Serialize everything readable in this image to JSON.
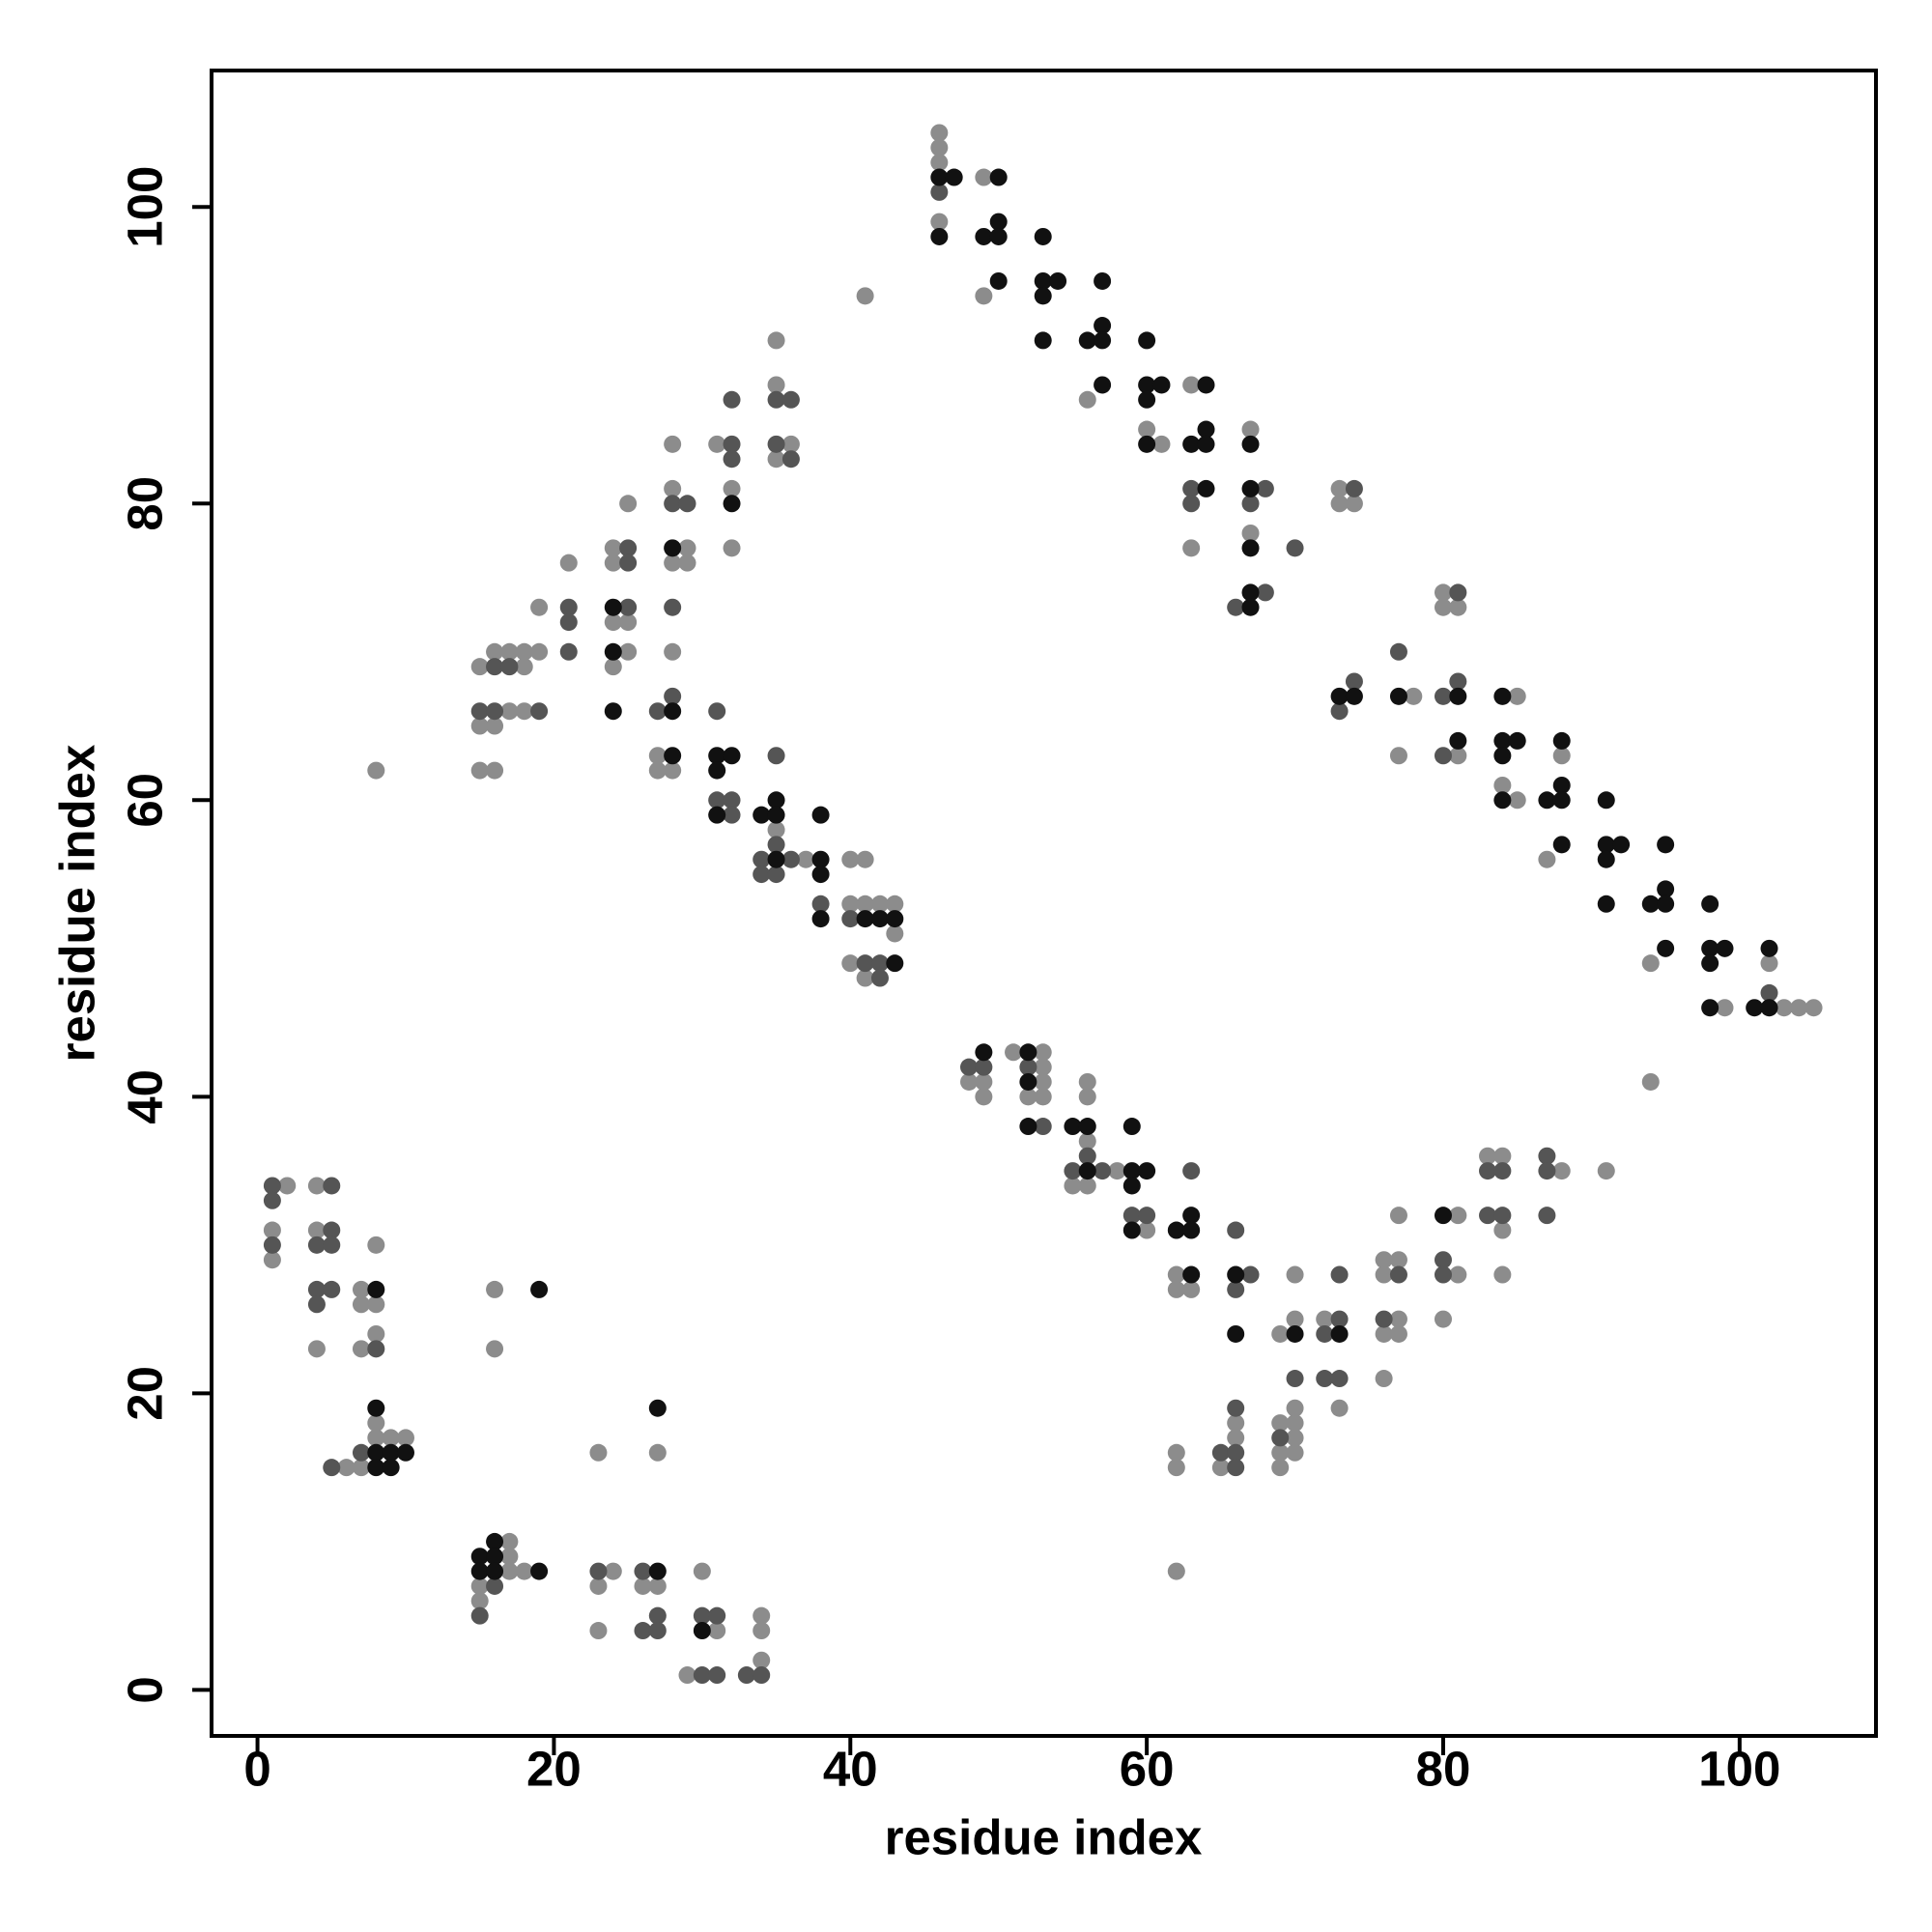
{
  "chart_data": {
    "type": "scatter",
    "x_label": "residue index",
    "y_label": "residue index",
    "xlim": [
      -3.1,
      109.2
    ],
    "ylim": [
      -3.1,
      109.2
    ],
    "xticks": [
      0,
      20,
      40,
      60,
      80,
      100
    ],
    "yticks": [
      0,
      20,
      40,
      60,
      80,
      100
    ],
    "grid": false,
    "series": [
      {
        "color": "#8c8c8c",
        "x": [
          1,
          1,
          2,
          4,
          4,
          4,
          6,
          7,
          7,
          7,
          7,
          8,
          8,
          8,
          8,
          8,
          9,
          10,
          8,
          16,
          16,
          15,
          15,
          17,
          17,
          17,
          18,
          23,
          23,
          23,
          24,
          26,
          27,
          27,
          29,
          30,
          31,
          34,
          34,
          34,
          15,
          15,
          15,
          16,
          16,
          16,
          17,
          17,
          18,
          18,
          18,
          19,
          19,
          21,
          24,
          24,
          24,
          24,
          25,
          25,
          25,
          27,
          27,
          28,
          28,
          28,
          28,
          28,
          29,
          29,
          31,
          32,
          32,
          35,
          35,
          35,
          35,
          36,
          37,
          40,
          40,
          40,
          41,
          41,
          41,
          41,
          42,
          43,
          43,
          46,
          46,
          46,
          46,
          49,
          49,
          56,
          60,
          61,
          63,
          63,
          67,
          67,
          73,
          73,
          74,
          77,
          78,
          80,
          80,
          81,
          81,
          84,
          85,
          85,
          87,
          88,
          94,
          94,
          99,
          102,
          103,
          104,
          105,
          48,
          49,
          49,
          51,
          53,
          53,
          53,
          53,
          52,
          55,
          56,
          56,
          56,
          56,
          58,
          60,
          62,
          62,
          62,
          62,
          62,
          63,
          65,
          66,
          66,
          69,
          69,
          69,
          69,
          70,
          70,
          70,
          70,
          70,
          70,
          72,
          73,
          76,
          76,
          76,
          76,
          77,
          77,
          77,
          77,
          80,
          81,
          81,
          83,
          84,
          84,
          84,
          88,
          91
        ],
        "y": [
          31,
          29,
          34,
          34,
          31,
          23,
          15,
          27,
          26,
          23,
          15,
          30,
          26,
          24,
          18,
          17,
          17,
          17,
          62,
          27,
          23,
          7,
          6,
          10,
          9,
          8,
          8,
          16,
          7,
          4,
          8,
          7,
          16,
          7,
          1,
          8,
          4,
          5,
          4,
          2,
          69,
          65,
          62,
          70,
          65,
          62,
          70,
          66,
          70,
          69,
          66,
          73,
          70,
          76,
          77,
          76,
          72,
          69,
          80,
          72,
          70,
          63,
          62,
          84,
          81,
          76,
          70,
          62,
          77,
          76,
          84,
          81,
          77,
          91,
          88,
          83,
          58,
          84,
          56,
          56,
          53,
          49,
          94,
          56,
          53,
          48,
          53,
          53,
          51,
          105,
          104,
          103,
          99,
          102,
          94,
          87,
          85,
          84,
          88,
          77,
          85,
          78,
          81,
          80,
          80,
          63,
          67,
          74,
          73,
          73,
          63,
          61,
          67,
          60,
          56,
          63,
          49,
          41,
          46,
          49,
          46,
          46,
          46,
          41,
          41,
          40,
          43,
          43,
          42,
          41,
          40,
          40,
          34,
          41,
          40,
          37,
          34,
          35,
          31,
          28,
          27,
          16,
          15,
          8,
          27,
          15,
          18,
          17,
          24,
          18,
          16,
          15,
          28,
          25,
          19,
          18,
          17,
          16,
          25,
          19,
          29,
          28,
          24,
          21,
          32,
          29,
          25,
          24,
          25,
          32,
          28,
          36,
          36,
          31,
          28,
          35,
          35
        ]
      },
      {
        "color": "#555555",
        "x": [
          1,
          1,
          1,
          4,
          4,
          4,
          5,
          5,
          5,
          5,
          5,
          7,
          8,
          15,
          16,
          23,
          26,
          26,
          27,
          27,
          30,
          30,
          31,
          31,
          33,
          34,
          15,
          16,
          16,
          17,
          19,
          21,
          21,
          21,
          25,
          25,
          25,
          27,
          28,
          28,
          28,
          29,
          31,
          31,
          32,
          32,
          32,
          32,
          32,
          34,
          34,
          35,
          35,
          35,
          35,
          35,
          36,
          36,
          36,
          38,
          40,
          41,
          42,
          42,
          46,
          63,
          63,
          66,
          67,
          68,
          68,
          70,
          73,
          74,
          74,
          77,
          80,
          80,
          81,
          81,
          102,
          48,
          49,
          52,
          53,
          55,
          56,
          57,
          59,
          60,
          63,
          65,
          66,
          66,
          66,
          66,
          66,
          67,
          69,
          70,
          72,
          72,
          73,
          73,
          73,
          76,
          77,
          80,
          80,
          83,
          83,
          84,
          84,
          87,
          87,
          87
        ],
        "y": [
          34,
          33,
          30,
          30,
          27,
          26,
          34,
          31,
          30,
          27,
          15,
          16,
          23,
          5,
          7,
          8,
          8,
          4,
          5,
          4,
          5,
          1,
          5,
          1,
          1,
          1,
          66,
          69,
          66,
          69,
          66,
          73,
          72,
          70,
          77,
          76,
          73,
          66,
          80,
          73,
          67,
          80,
          66,
          60,
          87,
          84,
          83,
          60,
          59,
          56,
          55,
          87,
          84,
          63,
          57,
          55,
          87,
          83,
          56,
          53,
          52,
          49,
          49,
          48,
          101,
          81,
          80,
          73,
          80,
          81,
          74,
          77,
          66,
          81,
          68,
          70,
          67,
          63,
          74,
          68,
          47,
          42,
          42,
          42,
          38,
          35,
          36,
          35,
          32,
          32,
          35,
          16,
          31,
          27,
          19,
          16,
          15,
          28,
          17,
          21,
          24,
          21,
          28,
          25,
          21,
          25,
          28,
          29,
          28,
          35,
          32,
          35,
          32,
          36,
          35,
          32
        ]
      },
      {
        "color": "#111111",
        "x": [
          8,
          8,
          8,
          8,
          9,
          9,
          10,
          19,
          15,
          15,
          16,
          16,
          16,
          19,
          27,
          27,
          30,
          24,
          24,
          24,
          28,
          28,
          28,
          31,
          31,
          31,
          32,
          32,
          34,
          35,
          35,
          35,
          38,
          38,
          38,
          38,
          41,
          42,
          43,
          43,
          46,
          46,
          47,
          49,
          50,
          50,
          50,
          50,
          53,
          53,
          53,
          53,
          54,
          56,
          57,
          57,
          57,
          57,
          60,
          60,
          60,
          60,
          61,
          63,
          64,
          64,
          64,
          64,
          67,
          67,
          67,
          67,
          67,
          73,
          74,
          77,
          81,
          81,
          84,
          84,
          84,
          84,
          85,
          87,
          88,
          88,
          88,
          88,
          91,
          91,
          91,
          91,
          92,
          94,
          95,
          95,
          95,
          95,
          98,
          98,
          98,
          98,
          99,
          101,
          102,
          102,
          49,
          52,
          52,
          52,
          55,
          56,
          56,
          59,
          59,
          59,
          59,
          60,
          62,
          63,
          63,
          63,
          66,
          66,
          70,
          73,
          80
        ],
        "y": [
          27,
          19,
          16,
          15,
          16,
          15,
          16,
          27,
          9,
          8,
          10,
          9,
          8,
          8,
          19,
          8,
          4,
          73,
          70,
          66,
          77,
          66,
          63,
          63,
          62,
          59,
          63,
          80,
          59,
          60,
          59,
          56,
          59,
          56,
          55,
          52,
          52,
          52,
          52,
          49,
          102,
          98,
          102,
          98,
          102,
          99,
          98,
          95,
          98,
          95,
          94,
          91,
          95,
          91,
          95,
          92,
          91,
          88,
          91,
          88,
          87,
          84,
          88,
          84,
          88,
          85,
          84,
          81,
          84,
          81,
          77,
          74,
          73,
          67,
          67,
          67,
          67,
          64,
          67,
          64,
          63,
          60,
          64,
          60,
          64,
          61,
          60,
          57,
          60,
          57,
          56,
          53,
          57,
          53,
          57,
          54,
          53,
          50,
          53,
          50,
          49,
          46,
          50,
          46,
          50,
          46,
          43,
          43,
          41,
          38,
          38,
          38,
          35,
          38,
          35,
          34,
          31,
          35,
          31,
          32,
          31,
          28,
          28,
          24,
          24,
          24,
          32
        ]
      }
    ]
  }
}
